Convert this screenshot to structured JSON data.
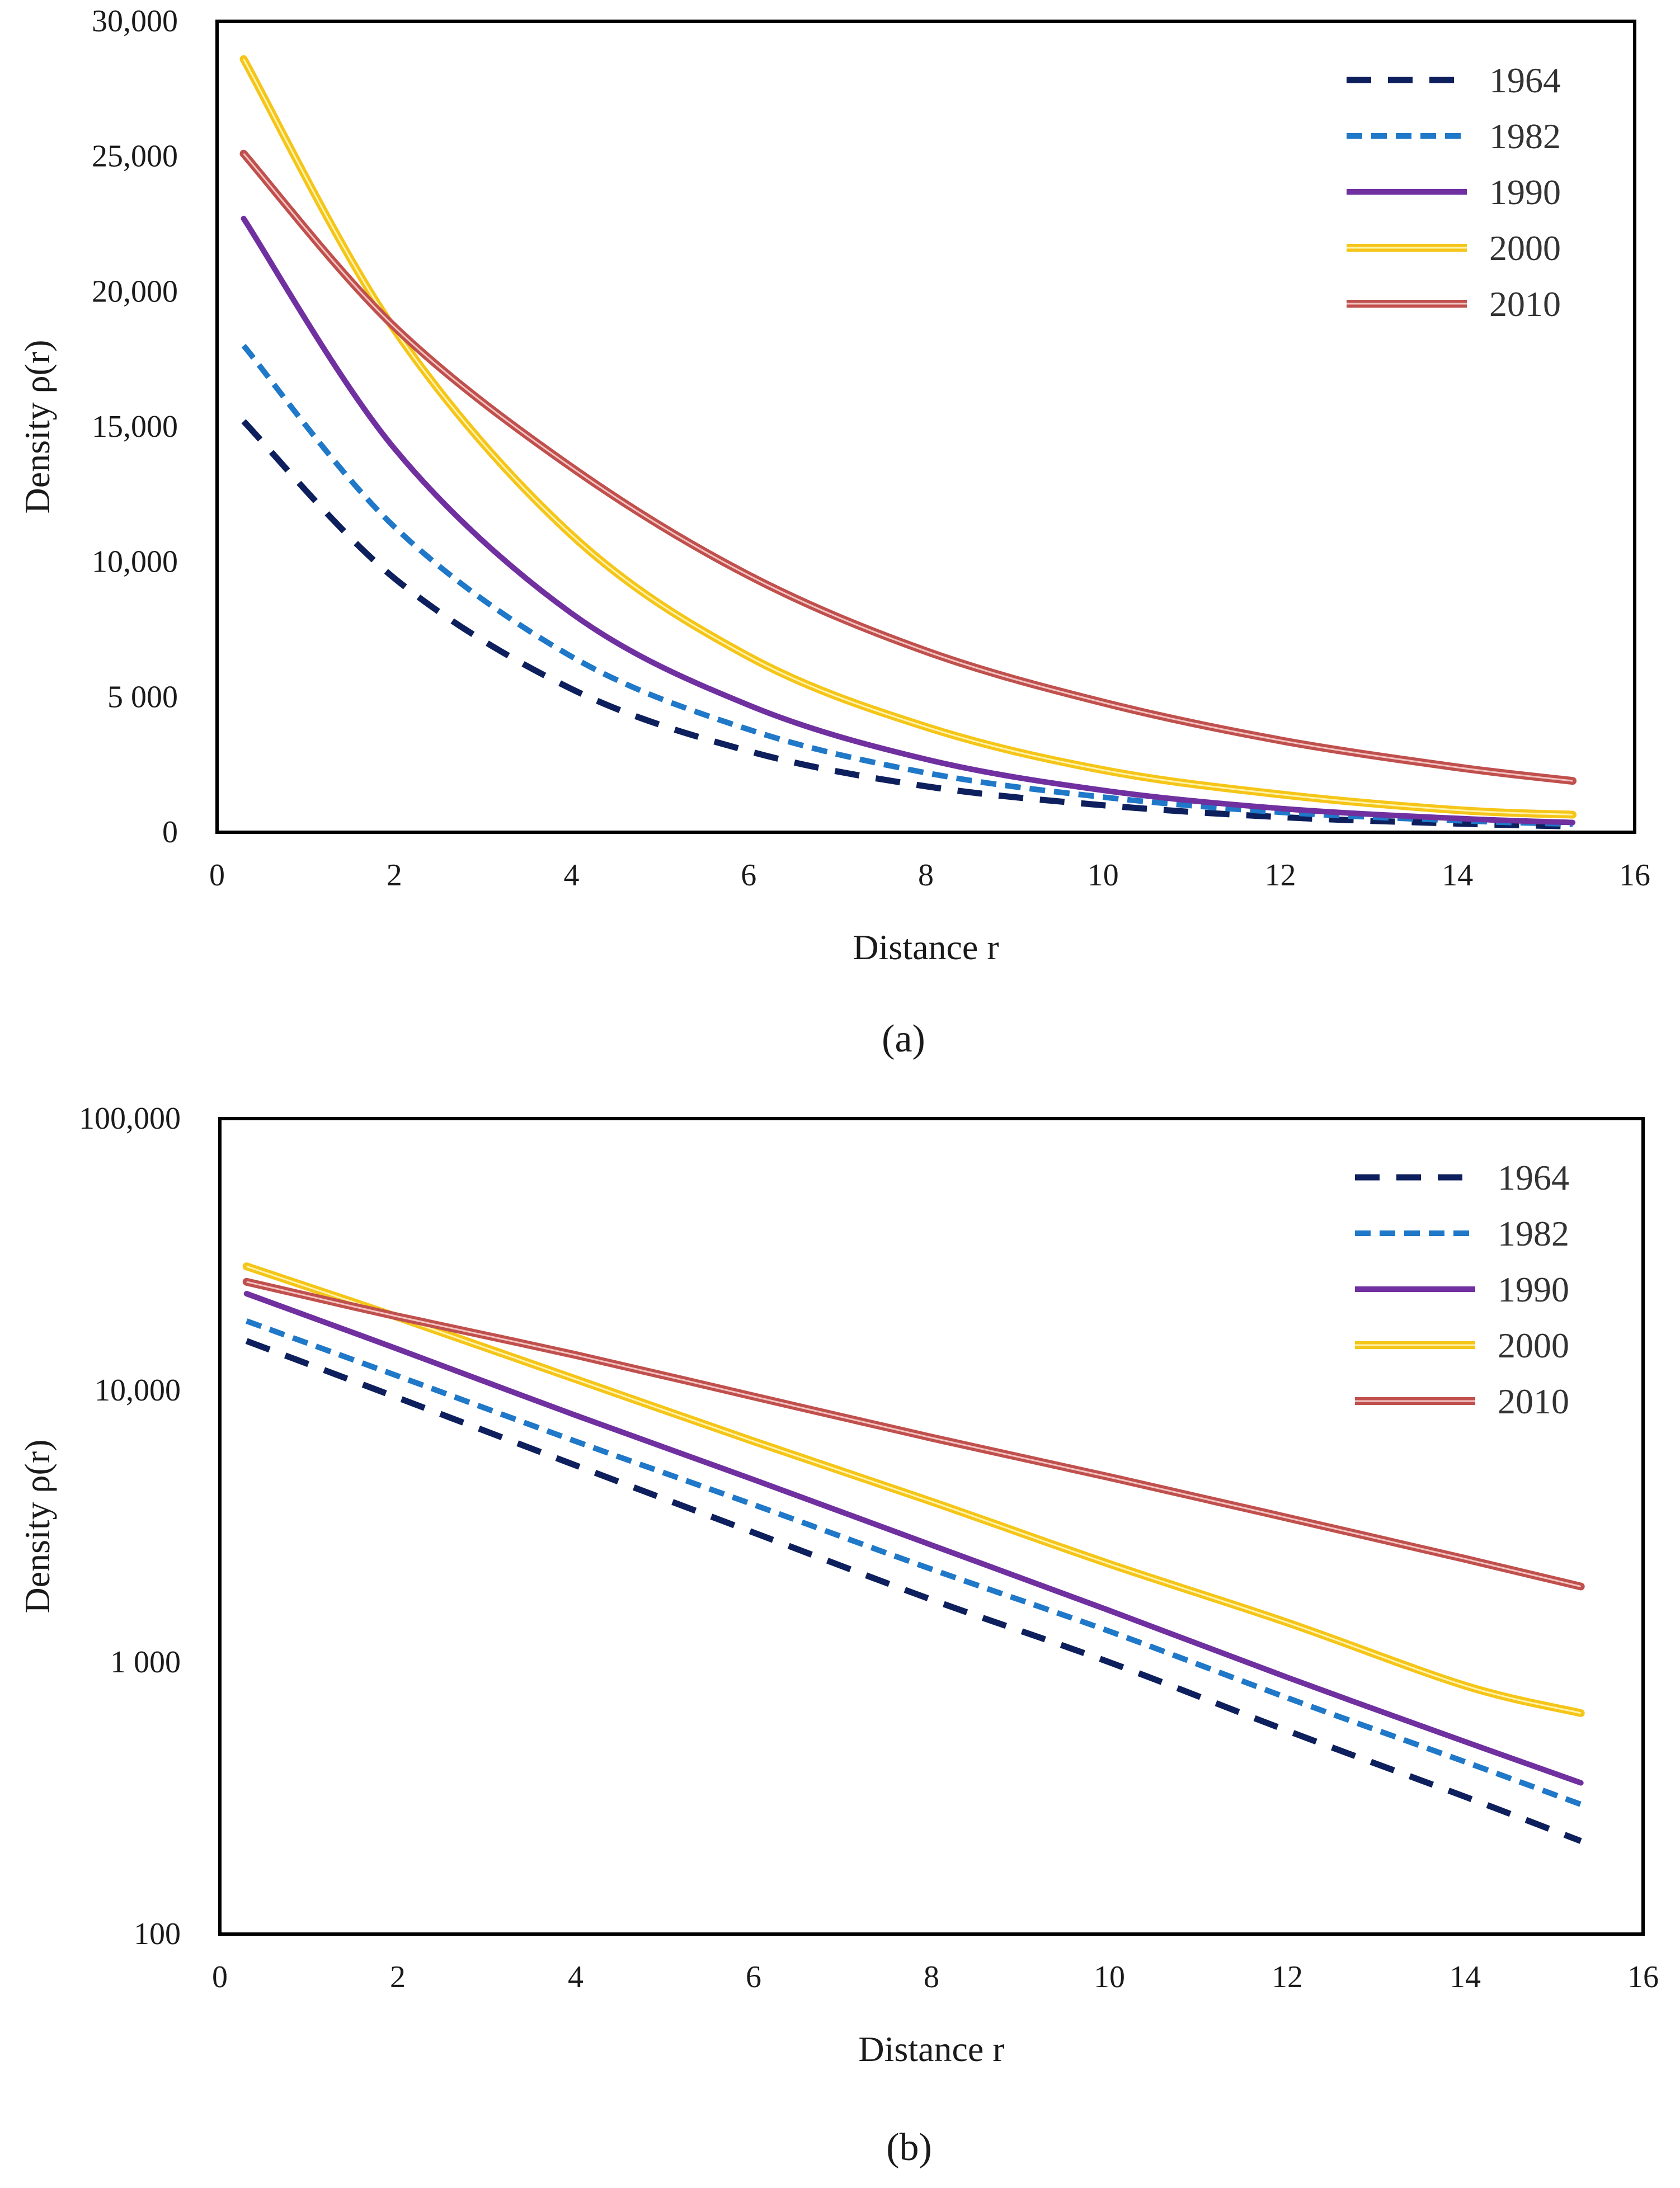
{
  "chart_data": [
    {
      "id": "a",
      "panel_label": "(a)",
      "type": "line",
      "yscale": "linear",
      "xlabel": "Distance r",
      "ylabel": "Density ρ(r)",
      "xlim": [
        0,
        16
      ],
      "ylim": [
        0,
        30000
      ],
      "xticks": [
        0,
        2,
        4,
        6,
        8,
        10,
        12,
        14,
        16
      ],
      "xtick_labels": [
        "0",
        "2",
        "4",
        "6",
        "8",
        "10",
        "12",
        "14",
        "16"
      ],
      "yticks": [
        0,
        5000,
        10000,
        15000,
        20000,
        25000,
        30000
      ],
      "ytick_labels": [
        "0",
        "5 000",
        "10,000",
        "15,000",
        "20,000",
        "25,000",
        "30,000"
      ],
      "legend_position": "top-right",
      "x": [
        0.3,
        2,
        4,
        6,
        8,
        10,
        12,
        14,
        15.3
      ],
      "series": [
        {
          "name": "1964",
          "values": [
            15200,
            9400,
            5300,
            3000,
            1700,
            1000,
            560,
            320,
            220
          ]
        },
        {
          "name": "1982",
          "values": [
            18000,
            11300,
            6500,
            3800,
            2200,
            1300,
            740,
            430,
            300
          ]
        },
        {
          "name": "1990",
          "values": [
            22700,
            14200,
            8100,
            4700,
            2700,
            1550,
            880,
            510,
            360
          ]
        },
        {
          "name": "2000",
          "values": [
            28600,
            18600,
            11000,
            6500,
            3900,
            2300,
            1400,
            820,
            650
          ]
        },
        {
          "name": "2010",
          "values": [
            25100,
            18700,
            13500,
            9500,
            6700,
            4800,
            3400,
            2400,
            1900
          ]
        }
      ]
    },
    {
      "id": "b",
      "panel_label": "(b)",
      "type": "line",
      "yscale": "log",
      "xlabel": "Distance r",
      "ylabel": "Density ρ(r)",
      "xlim": [
        0,
        16
      ],
      "ylim": [
        100,
        100000
      ],
      "xticks": [
        0,
        2,
        4,
        6,
        8,
        10,
        12,
        14,
        16
      ],
      "xtick_labels": [
        "0",
        "2",
        "4",
        "6",
        "8",
        "10",
        "12",
        "14",
        "16"
      ],
      "yticks": [
        100,
        1000,
        10000,
        100000
      ],
      "ytick_labels": [
        "100",
        "1 000",
        "10,000",
        "100,000"
      ],
      "legend_position": "top-right",
      "x": [
        0.3,
        2,
        4,
        6,
        8,
        10,
        12,
        14,
        15.3
      ],
      "series": [
        {
          "name": "1964",
          "values": [
            15200,
            9400,
            5300,
            3000,
            1700,
            1000,
            560,
            320,
            220
          ]
        },
        {
          "name": "1982",
          "values": [
            18000,
            11300,
            6500,
            3800,
            2200,
            1300,
            740,
            430,
            300
          ]
        },
        {
          "name": "1990",
          "values": [
            22700,
            14200,
            8100,
            4700,
            2700,
            1550,
            880,
            510,
            360
          ]
        },
        {
          "name": "2000",
          "values": [
            28600,
            18600,
            11000,
            6500,
            3900,
            2300,
            1400,
            820,
            650
          ]
        },
        {
          "name": "2010",
          "values": [
            25100,
            18700,
            13500,
            9500,
            6700,
            4800,
            3400,
            2400,
            1900
          ]
        }
      ]
    }
  ],
  "colors": {
    "1964": "#0d1f5c",
    "1982": "#1f78c8",
    "1990": "#7030a0",
    "2000": "#f5c518",
    "2010": "#c0504d"
  }
}
